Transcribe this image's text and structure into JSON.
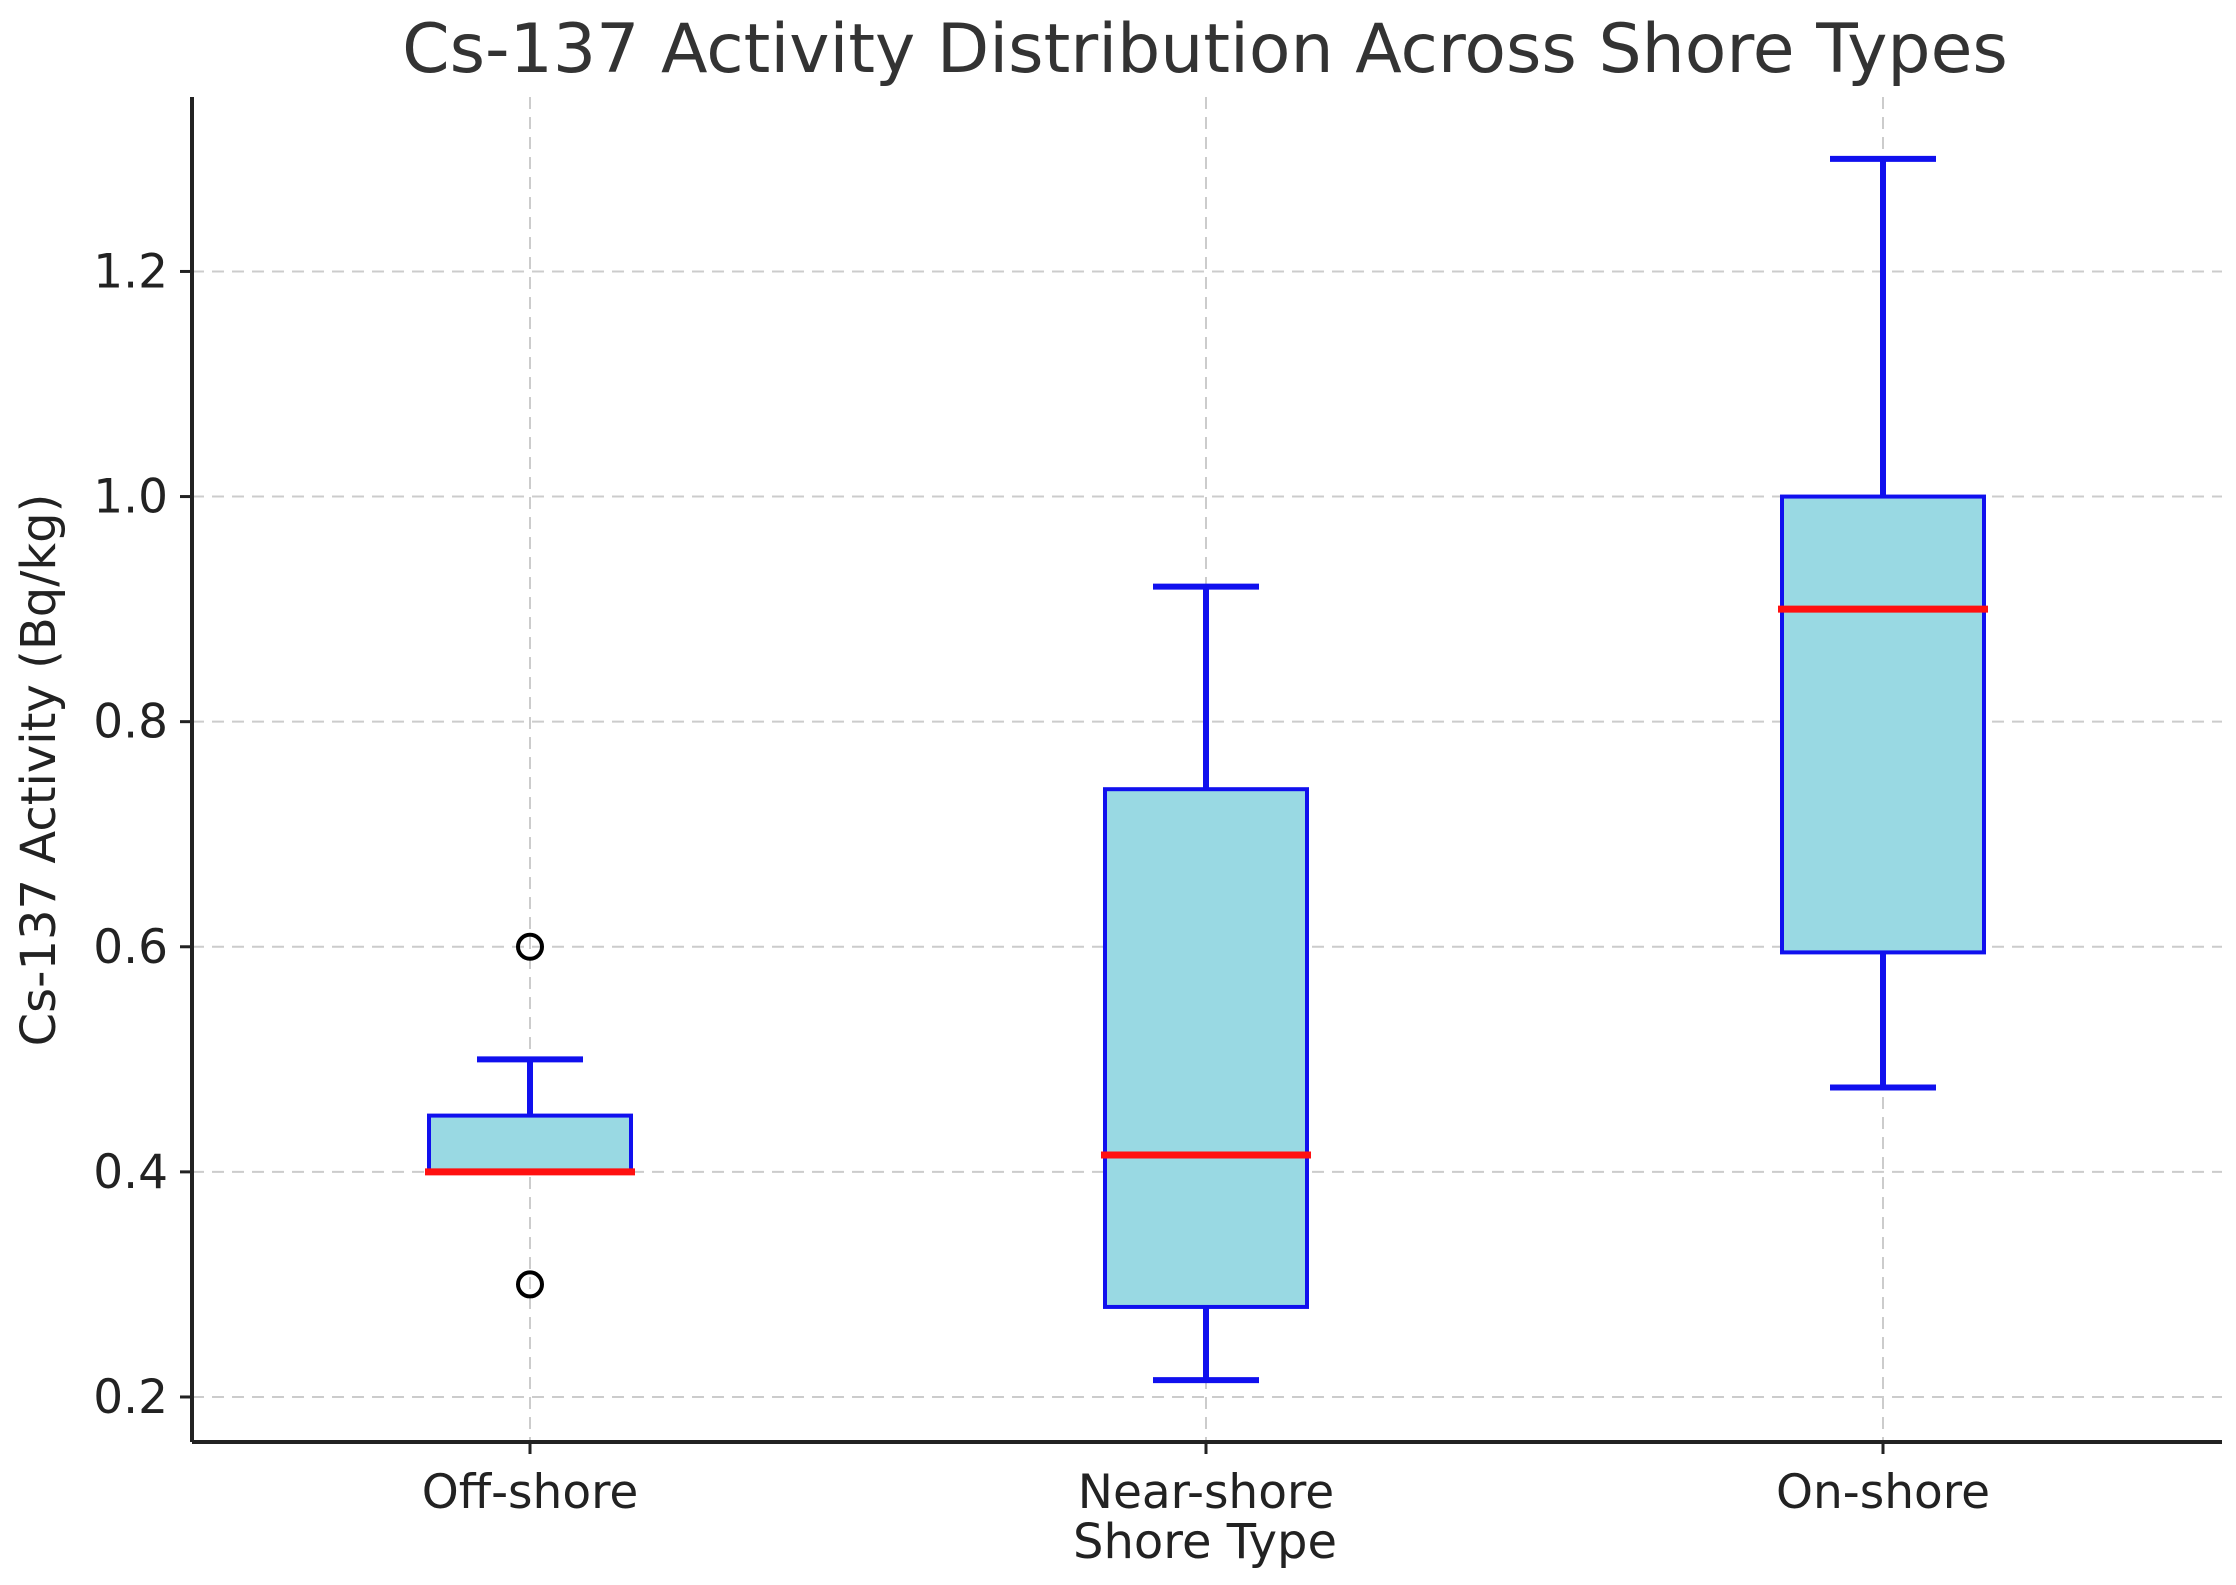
{
  "chart_data": {
    "type": "box",
    "title": "Cs-137 Activity Distribution Across Shore Types",
    "xlabel": "Shore Type",
    "ylabel": "Cs-137 Activity (Bq/kg)",
    "ylim": [
      0.16,
      1.355
    ],
    "yticks": [
      0.2,
      0.4,
      0.6,
      0.8,
      1.0,
      1.2
    ],
    "ytick_labels": [
      "0.2",
      "0.4",
      "0.6",
      "0.8",
      "1.0",
      "1.2"
    ],
    "grid": true,
    "categories": [
      "Off-shore",
      "Near-shore",
      "On-shore"
    ],
    "boxes": [
      {
        "name": "Off-shore",
        "whisker_low": 0.4,
        "q1": 0.4,
        "median": 0.4,
        "q3": 0.45,
        "whisker_high": 0.5,
        "outliers": [
          0.3,
          0.6
        ]
      },
      {
        "name": "Near-shore",
        "whisker_low": 0.215,
        "q1": 0.28,
        "median": 0.415,
        "q3": 0.74,
        "whisker_high": 0.92,
        "outliers": []
      },
      {
        "name": "On-shore",
        "whisker_low": 0.475,
        "q1": 0.595,
        "median": 0.9,
        "q3": 1.0,
        "whisker_high": 1.3,
        "outliers": []
      }
    ],
    "colors": {
      "box_fill": "#99d9e3",
      "box_edge": "#1010ee",
      "median": "#ff1010",
      "outlier": "#000000"
    }
  }
}
